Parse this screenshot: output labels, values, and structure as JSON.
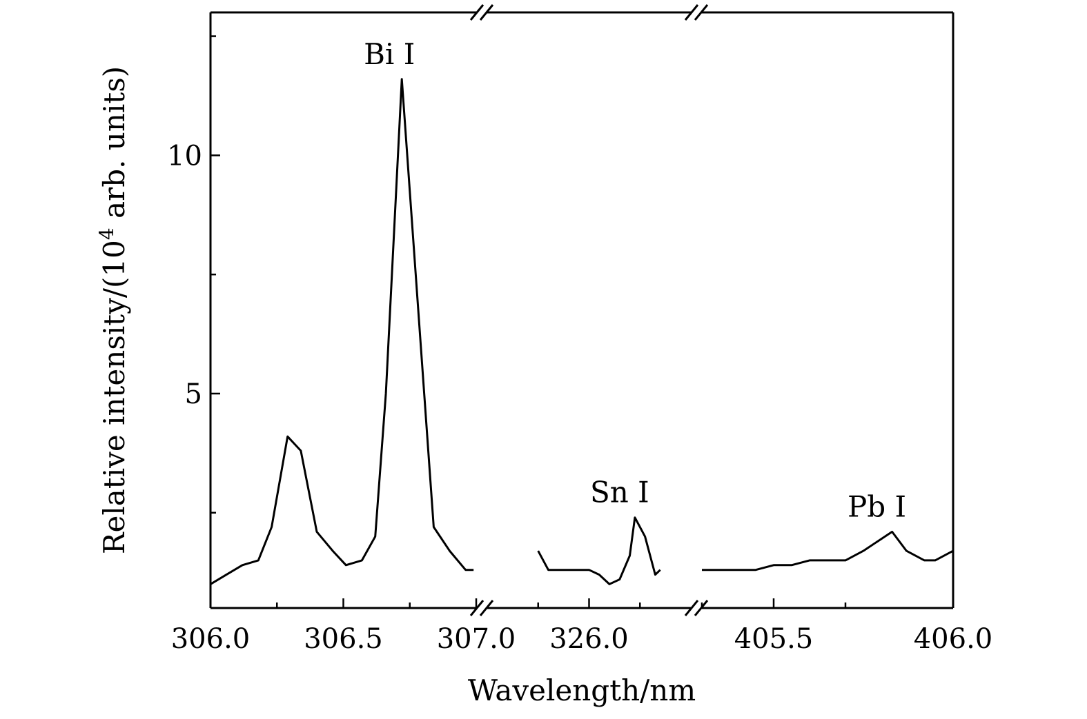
{
  "chart_data": {
    "type": "line",
    "xlabel": "Wavelength/nm",
    "ylabel": {
      "prefix": "Relative intensity/(10",
      "superscript": "4",
      "suffix": " arb. units)"
    },
    "ylim": [
      0.5,
      13.0
    ],
    "y_ticks": [
      {
        "value": 5,
        "label": "5"
      },
      {
        "value": 10,
        "label": "10"
      }
    ],
    "y_minor_ticks": [
      2.5,
      7.5,
      12.5
    ],
    "grid": false,
    "legend": "none",
    "colors": {
      "line": "#000000",
      "axes": "#000000",
      "background": "#ffffff"
    },
    "axis_breaks": [
      "307.0|326.0",
      "326.2|405.3"
    ],
    "segments": [
      {
        "name": "Bi region",
        "x_range": [
          306.0,
          307.0
        ],
        "x_ticks": [
          {
            "value": 306.0,
            "label": "306.0"
          },
          {
            "value": 306.5,
            "label": "306.5"
          },
          {
            "value": 307.0,
            "label": "307.0"
          }
        ],
        "x_minor_ticks": [
          306.25,
          306.75
        ],
        "x": [
          306.0,
          306.06,
          306.12,
          306.18,
          306.23,
          306.29,
          306.34,
          306.4,
          306.46,
          306.51,
          306.57,
          306.62,
          306.66,
          306.72,
          306.84,
          306.9,
          306.96,
          306.99
        ],
        "y": [
          1.0,
          1.2,
          1.4,
          1.5,
          2.2,
          4.1,
          3.8,
          2.1,
          1.7,
          1.4,
          1.5,
          2.0,
          5.0,
          11.6,
          2.2,
          1.7,
          1.3,
          1.3
        ]
      },
      {
        "name": "Sn region",
        "x_range": [
          325.8,
          326.2
        ],
        "x_ticks": [
          {
            "value": 326.0,
            "label": "326.0"
          }
        ],
        "x_minor_ticks": [
          325.9,
          326.1
        ],
        "x": [
          325.9,
          325.92,
          325.94,
          325.96,
          325.98,
          326.0,
          326.02,
          326.04,
          326.06,
          326.08,
          326.09,
          326.11,
          326.13,
          326.14
        ],
        "y": [
          1.7,
          1.3,
          1.3,
          1.3,
          1.3,
          1.3,
          1.2,
          1.0,
          1.1,
          1.6,
          2.4,
          2.0,
          1.2,
          1.3
        ]
      },
      {
        "name": "Pb region",
        "x_range": [
          405.3,
          406.0
        ],
        "x_ticks": [
          {
            "value": 405.5,
            "label": "405.5"
          },
          {
            "value": 406.0,
            "label": "406.0"
          }
        ],
        "x_minor_ticks": [
          405.3,
          405.7
        ],
        "x": [
          405.3,
          405.35,
          405.4,
          405.45,
          405.5,
          405.55,
          405.6,
          405.65,
          405.7,
          405.75,
          405.79,
          405.83,
          405.87,
          405.92,
          405.95,
          406.0
        ],
        "y": [
          1.3,
          1.3,
          1.3,
          1.3,
          1.4,
          1.4,
          1.5,
          1.5,
          1.5,
          1.7,
          1.9,
          2.1,
          1.7,
          1.5,
          1.5,
          1.7
        ]
      }
    ],
    "annotations": [
      {
        "text": "Bi I",
        "x": 306.72,
        "y": 11.6,
        "segment": 0
      },
      {
        "text": "Sn I",
        "x": 326.09,
        "y": 2.4,
        "segment": 1
      },
      {
        "text": "Pb I",
        "x": 405.83,
        "y": 2.1,
        "segment": 2
      }
    ]
  }
}
